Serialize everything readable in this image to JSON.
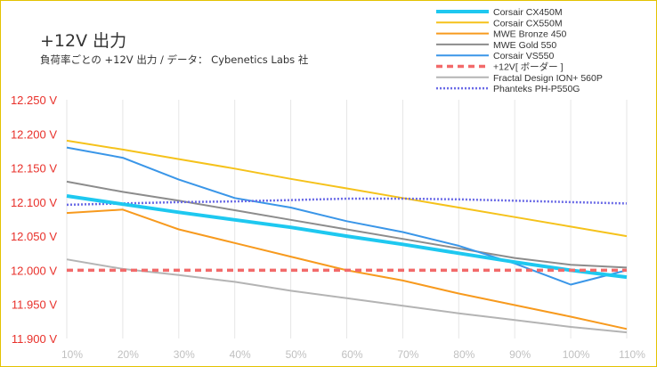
{
  "chart_data": {
    "type": "line",
    "title": "+12V 出力",
    "subtitle": "負荷率ごとの +12V 出力 / データ： Cybenetics Labs 社",
    "xlabel": "",
    "ylabel": "",
    "x": [
      10,
      20,
      30,
      40,
      50,
      60,
      70,
      80,
      90,
      100,
      110
    ],
    "x_tick_labels": [
      "10%",
      "20%",
      "30%",
      "40%",
      "50%",
      "60%",
      "70%",
      "80%",
      "90%",
      "100%",
      "110%"
    ],
    "xlim": [
      10,
      110
    ],
    "ylim": [
      11.9,
      12.25
    ],
    "y_ticks": [
      11.9,
      11.95,
      12.0,
      12.05,
      12.1,
      12.15,
      12.2,
      12.25
    ],
    "y_tick_labels": [
      "11.900 V",
      "11.950 V",
      "12.000 V",
      "12.050 V",
      "12.100 V",
      "12.150 V",
      "12.200 V",
      "12.250 V"
    ],
    "grid": "vertical",
    "legend_position": "top-right",
    "series": [
      {
        "name": "Corsair CX450M",
        "color": "#1ec8f0",
        "style": "thick",
        "values": [
          12.109,
          12.097,
          12.085,
          12.074,
          12.063,
          12.05,
          12.038,
          12.025,
          12.012,
          12.0,
          11.99
        ]
      },
      {
        "name": "Corsair CX550M",
        "color": "#f5c21b",
        "style": "solid",
        "values": [
          12.19,
          12.177,
          12.163,
          12.149,
          12.134,
          12.12,
          12.106,
          12.092,
          12.078,
          12.064,
          12.05
        ]
      },
      {
        "name": "MWE Bronze 450",
        "color": "#f79a1e",
        "style": "solid",
        "values": [
          12.084,
          12.089,
          12.06,
          12.04,
          12.02,
          12.0,
          11.985,
          11.966,
          11.949,
          11.932,
          11.914
        ]
      },
      {
        "name": "MWE Gold 550",
        "color": "#8c8c8c",
        "style": "solid",
        "values": [
          12.13,
          12.115,
          12.102,
          12.088,
          12.074,
          12.06,
          12.046,
          12.032,
          12.018,
          12.008,
          12.004
        ]
      },
      {
        "name": "Corsair VS550",
        "color": "#3a96e8",
        "style": "solid",
        "values": [
          12.18,
          12.165,
          12.133,
          12.106,
          12.092,
          12.072,
          12.056,
          12.036,
          12.01,
          11.979,
          12.0
        ]
      },
      {
        "name": "+12V[ ボーダー ]",
        "color": "#f26a6a",
        "style": "dashed",
        "values": [
          12.0,
          12.0,
          12.0,
          12.0,
          12.0,
          12.0,
          12.0,
          12.0,
          12.0,
          12.0,
          12.0
        ]
      },
      {
        "name": "Fractal Design ION+ 560P",
        "color": "#b4b4b4",
        "style": "solid",
        "values": [
          12.016,
          12.002,
          11.993,
          11.983,
          11.97,
          11.959,
          11.948,
          11.937,
          11.927,
          11.917,
          11.909
        ]
      },
      {
        "name": "Phanteks PH-P550G",
        "color": "#6a6ae6",
        "style": "dotted",
        "values": [
          12.096,
          12.098,
          12.1,
          12.101,
          12.103,
          12.105,
          12.105,
          12.104,
          12.102,
          12.1,
          12.098
        ]
      }
    ]
  }
}
